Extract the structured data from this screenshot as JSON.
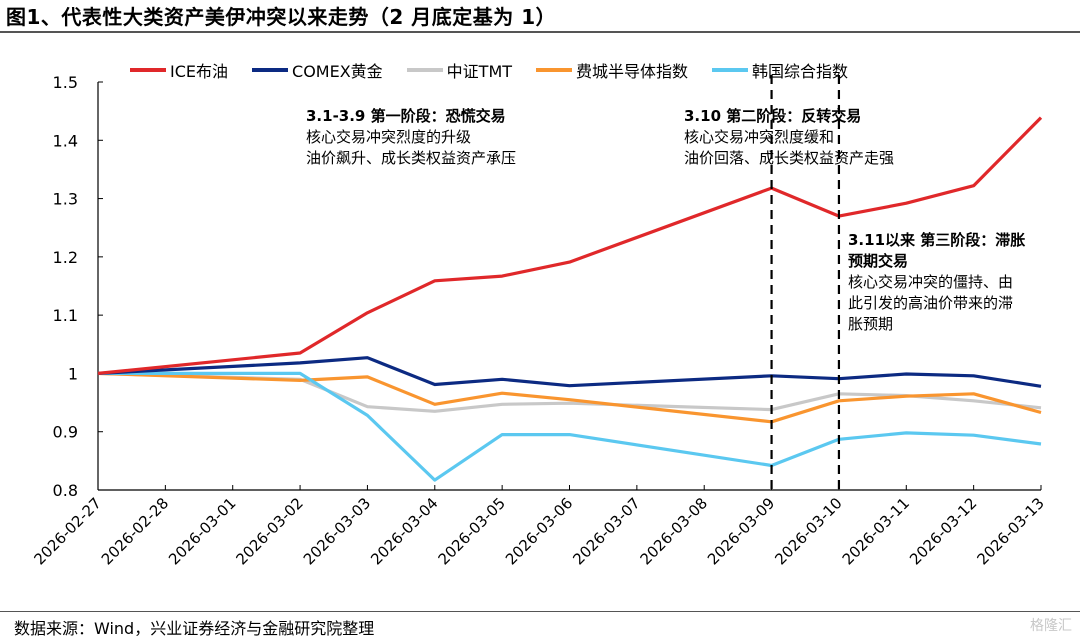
{
  "title": "图1、代表性大类资产美伊冲突以来走势（2 月底定基为 1）",
  "source": "数据来源：Wind，兴业证券经济与金融研究院整理",
  "logo_text": "格隆汇",
  "chart_data": {
    "type": "line",
    "title": "代表性大类资产美伊冲突以来走势（2 月底定基为 1）",
    "xlabel": "",
    "ylabel": "",
    "ylim": [
      0.8,
      1.5
    ],
    "yticks": [
      "0.8",
      "0.9",
      "1",
      "1.1",
      "1.2",
      "1.3",
      "1.4",
      "1.5"
    ],
    "ytick_values": [
      0.8,
      0.9,
      1.0,
      1.1,
      1.2,
      1.3,
      1.4,
      1.5
    ],
    "grid": false,
    "legend_position": "top",
    "categories": [
      "2026-02-27",
      "2026-02-28",
      "2026-03-01",
      "2026-03-02",
      "2026-03-03",
      "2026-03-04",
      "2026-03-05",
      "2026-03-06",
      "2026-03-07",
      "2026-03-08",
      "2026-03-09",
      "2026-03-10",
      "2026-03-11",
      "2026-03-12",
      "2026-03-13"
    ],
    "series": [
      {
        "name": "ICE布油",
        "color": "#e0282a",
        "values": [
          1.0,
          null,
          null,
          1.035,
          1.104,
          1.159,
          1.167,
          1.191,
          null,
          null,
          1.318,
          1.27,
          1.292,
          1.322,
          1.439
        ]
      },
      {
        "name": "COMEX黄金",
        "color": "#0c2a82",
        "values": [
          1.0,
          null,
          null,
          1.018,
          1.027,
          0.981,
          0.99,
          0.979,
          null,
          null,
          0.996,
          0.991,
          0.999,
          0.996,
          0.978
        ]
      },
      {
        "name": "中证TMT",
        "color": "#c8c8c8",
        "values": [
          1.0,
          null,
          null,
          0.99,
          0.943,
          0.935,
          0.947,
          0.949,
          null,
          null,
          0.938,
          0.965,
          0.962,
          0.953,
          0.941
        ]
      },
      {
        "name": "费城半导体指数",
        "color": "#f9952f",
        "values": [
          1.0,
          null,
          null,
          0.988,
          0.994,
          0.947,
          0.966,
          0.955,
          null,
          null,
          0.917,
          0.953,
          0.961,
          0.965,
          0.933
        ]
      },
      {
        "name": "韩国综合指数",
        "color": "#5bc8f0",
        "values": [
          1.0,
          null,
          null,
          1.0,
          0.928,
          0.817,
          0.895,
          0.895,
          null,
          null,
          0.842,
          0.887,
          0.898,
          0.894,
          0.879
        ]
      }
    ],
    "vlines": [
      {
        "at": "2026-03-09",
        "style": "dashed"
      },
      {
        "at": "2026-03-10",
        "style": "dashed"
      }
    ],
    "annotations": [
      {
        "title": "3.1-3.9 第一阶段：恐慌交易",
        "lines": [
          "核心交易冲突烈度的升级",
          "油价飙升、成长类权益资产承压"
        ]
      },
      {
        "title": "3.10 第二阶段：反转交易",
        "lines": [
          "核心交易冲突烈度缓和",
          "油价回落、成长类权益资产走强"
        ]
      },
      {
        "title": "3.11以来 第三阶段：滞胀",
        "title2": "预期交易",
        "lines": [
          "核心交易冲突的僵持、由",
          "此引发的高油价带来的滞",
          "胀预期"
        ]
      }
    ]
  }
}
